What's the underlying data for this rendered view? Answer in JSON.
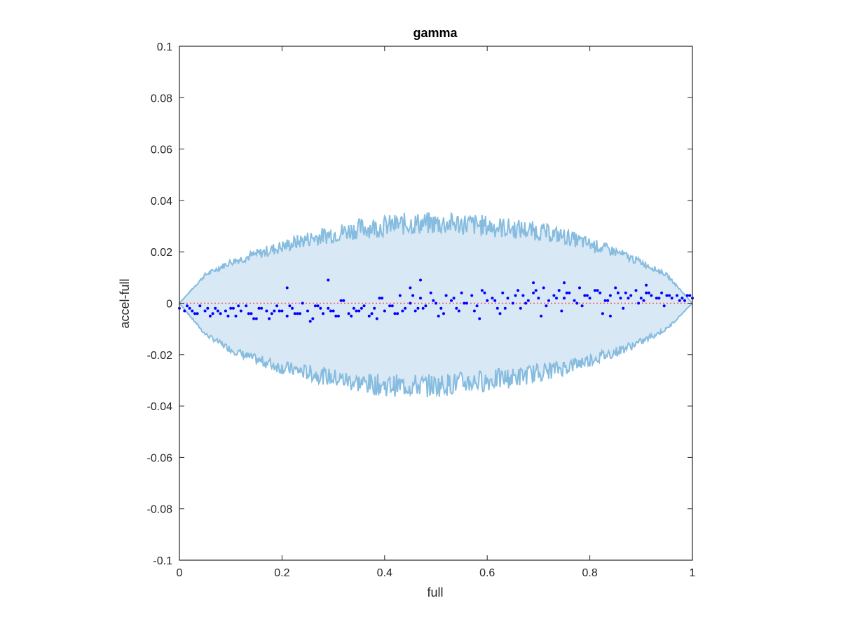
{
  "chart_data": {
    "type": "scatter",
    "title": "gamma",
    "xlabel": "full",
    "ylabel": "accel-full",
    "xlim": [
      0,
      1
    ],
    "ylim": [
      -0.1,
      0.1
    ],
    "grid": false,
    "x_ticks": [
      {
        "value": 0,
        "label": "0"
      },
      {
        "value": 0.2,
        "label": "0.2"
      },
      {
        "value": 0.4,
        "label": "0.4"
      },
      {
        "value": 0.6,
        "label": "0.6"
      },
      {
        "value": 0.8,
        "label": "0.8"
      },
      {
        "value": 1,
        "label": "1"
      }
    ],
    "y_ticks": [
      {
        "value": 0.1,
        "label": "0.1"
      },
      {
        "value": 0.08,
        "label": "0.08"
      },
      {
        "value": 0.06,
        "label": "0.06"
      },
      {
        "value": 0.04,
        "label": "0.04"
      },
      {
        "value": 0.02,
        "label": "0.02"
      },
      {
        "value": 0,
        "label": "0"
      },
      {
        "value": -0.02,
        "label": "-0.02"
      },
      {
        "value": -0.04,
        "label": "-0.04"
      },
      {
        "value": -0.06,
        "label": "-0.06"
      },
      {
        "value": -0.08,
        "label": "-0.08"
      },
      {
        "value": -0.1,
        "label": "-0.1"
      }
    ],
    "colors": {
      "band_fill": "#d9e8f5",
      "band_edge": "#86bcdf",
      "points": "#0000ff",
      "zero_line": "#ff4d4d",
      "axes": "#262626"
    },
    "band": {
      "x": [
        0,
        0.05,
        0.1,
        0.15,
        0.2,
        0.25,
        0.3,
        0.35,
        0.4,
        0.45,
        0.5,
        0.55,
        0.6,
        0.65,
        0.7,
        0.75,
        0.8,
        0.85,
        0.9,
        0.95,
        1
      ],
      "upper": [
        0,
        0.011,
        0.016,
        0.019,
        0.022,
        0.025,
        0.027,
        0.029,
        0.03,
        0.031,
        0.031,
        0.031,
        0.03,
        0.029,
        0.028,
        0.026,
        0.023,
        0.02,
        0.016,
        0.011,
        0
      ],
      "lower": [
        0,
        -0.012,
        -0.018,
        -0.022,
        -0.025,
        -0.027,
        -0.029,
        -0.031,
        -0.032,
        -0.032,
        -0.032,
        -0.031,
        -0.03,
        -0.029,
        -0.027,
        -0.025,
        -0.022,
        -0.019,
        -0.015,
        -0.01,
        0
      ]
    },
    "series": [
      {
        "x": [
          0.0,
          0.01,
          0.02,
          0.03,
          0.04,
          0.05,
          0.06,
          0.07,
          0.08,
          0.09,
          0.1,
          0.11,
          0.12,
          0.13,
          0.14,
          0.15,
          0.16,
          0.17,
          0.18,
          0.19,
          0.2,
          0.21,
          0.22,
          0.23,
          0.24,
          0.25,
          0.26,
          0.27,
          0.28,
          0.29,
          0.3,
          0.31,
          0.32,
          0.33,
          0.34,
          0.35,
          0.36,
          0.37,
          0.38,
          0.39,
          0.4,
          0.41,
          0.42,
          0.43,
          0.44,
          0.45,
          0.46,
          0.47,
          0.48,
          0.49,
          0.5,
          0.51,
          0.52,
          0.53,
          0.54,
          0.55,
          0.56,
          0.57,
          0.58,
          0.59,
          0.6,
          0.61,
          0.62,
          0.63,
          0.64,
          0.65,
          0.66,
          0.67,
          0.68,
          0.69,
          0.7,
          0.71,
          0.72,
          0.73,
          0.74,
          0.75,
          0.76,
          0.77,
          0.78,
          0.79,
          0.8,
          0.81,
          0.82,
          0.83,
          0.84,
          0.85,
          0.86,
          0.87,
          0.88,
          0.89,
          0.9,
          0.91,
          0.92,
          0.93,
          0.94,
          0.95,
          0.96,
          0.97,
          0.98,
          0.99,
          1.0,
          0.015,
          0.035,
          0.055,
          0.075,
          0.095,
          0.115,
          0.135,
          0.155,
          0.175,
          0.195,
          0.215,
          0.235,
          0.255,
          0.275,
          0.295,
          0.315,
          0.335,
          0.355,
          0.375,
          0.395,
          0.415,
          0.435,
          0.455,
          0.475,
          0.495,
          0.515,
          0.535,
          0.555,
          0.575,
          0.595,
          0.615,
          0.635,
          0.655,
          0.675,
          0.695,
          0.715,
          0.735,
          0.755,
          0.775,
          0.795,
          0.815,
          0.835,
          0.855,
          0.875,
          0.895,
          0.915,
          0.935,
          0.955,
          0.975,
          0.995,
          0.025,
          0.065,
          0.105,
          0.145,
          0.185,
          0.225,
          0.265,
          0.305,
          0.345,
          0.385,
          0.425,
          0.465,
          0.505,
          0.545,
          0.585,
          0.625,
          0.665,
          0.705,
          0.745,
          0.785,
          0.825,
          0.865,
          0.905,
          0.945,
          0.985,
          0.21,
          0.29,
          0.45,
          0.47,
          0.69,
          0.75,
          0.84,
          0.91
        ],
        "y": [
          -0.002,
          -0.003,
          -0.002,
          -0.004,
          -0.001,
          -0.003,
          -0.005,
          -0.002,
          -0.004,
          -0.003,
          -0.002,
          -0.005,
          -0.003,
          -0.001,
          -0.004,
          -0.006,
          -0.002,
          -0.003,
          -0.004,
          -0.001,
          -0.003,
          -0.005,
          -0.002,
          -0.004,
          0.0,
          -0.003,
          -0.006,
          -0.001,
          -0.004,
          -0.002,
          -0.003,
          -0.005,
          0.001,
          -0.004,
          -0.002,
          -0.003,
          -0.001,
          -0.005,
          -0.002,
          0.002,
          -0.003,
          -0.001,
          -0.004,
          0.003,
          -0.002,
          0.0,
          -0.003,
          0.002,
          -0.001,
          0.004,
          0.0,
          -0.002,
          0.003,
          0.001,
          -0.002,
          0.004,
          0.0,
          0.003,
          -0.001,
          0.005,
          0.001,
          0.002,
          -0.002,
          0.004,
          0.002,
          0.0,
          0.005,
          0.003,
          0.001,
          0.004,
          0.002,
          0.006,
          0.001,
          0.003,
          0.005,
          0.002,
          0.004,
          0.001,
          0.006,
          0.003,
          0.002,
          0.005,
          0.004,
          0.001,
          0.003,
          0.006,
          0.002,
          0.004,
          0.003,
          0.005,
          0.002,
          0.004,
          0.003,
          0.002,
          0.004,
          0.003,
          0.002,
          0.003,
          0.002,
          0.003,
          0.002,
          -0.001,
          -0.004,
          -0.002,
          -0.003,
          -0.005,
          -0.001,
          -0.004,
          -0.002,
          -0.006,
          -0.003,
          -0.001,
          -0.004,
          -0.007,
          -0.002,
          -0.003,
          0.001,
          -0.005,
          -0.002,
          -0.004,
          0.002,
          -0.001,
          -0.003,
          0.003,
          -0.002,
          0.001,
          -0.004,
          0.002,
          0.0,
          -0.003,
          0.004,
          0.001,
          -0.002,
          0.003,
          0.0,
          0.005,
          -0.001,
          0.002,
          0.004,
          0.0,
          0.003,
          0.005,
          0.001,
          0.004,
          0.002,
          0.0,
          0.004,
          0.002,
          0.003,
          0.001,
          0.003,
          -0.003,
          -0.004,
          -0.002,
          -0.006,
          -0.003,
          -0.004,
          -0.001,
          -0.005,
          -0.003,
          -0.006,
          -0.004,
          -0.002,
          -0.005,
          -0.003,
          -0.006,
          -0.004,
          -0.002,
          -0.005,
          -0.003,
          -0.001,
          -0.004,
          -0.002,
          0.001,
          -0.001,
          0.001,
          0.006,
          0.009,
          0.006,
          0.009,
          0.008,
          0.008,
          -0.005,
          0.007
        ]
      }
    ]
  }
}
